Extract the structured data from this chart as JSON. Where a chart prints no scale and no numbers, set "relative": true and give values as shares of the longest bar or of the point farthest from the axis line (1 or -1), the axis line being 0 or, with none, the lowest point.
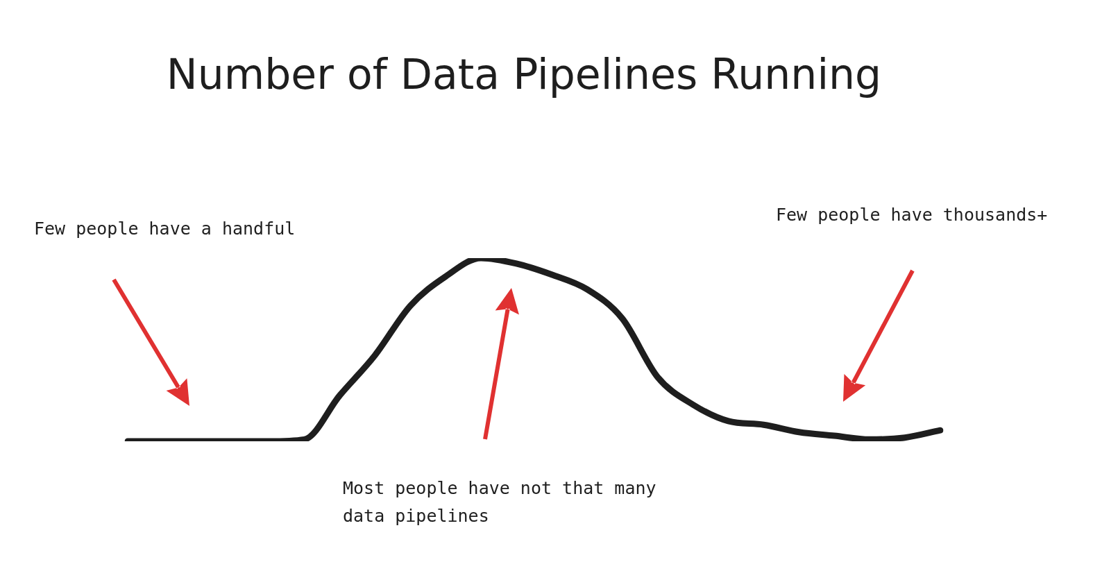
{
  "chart_data": {
    "type": "line",
    "title": "Number of Data Pipelines Running",
    "relative": true,
    "color": "#1e1e1e",
    "marker": "none",
    "line_style": "solid",
    "legend": false,
    "categories": [
      null,
      null,
      null,
      null,
      null,
      null,
      null,
      null,
      null,
      null,
      null,
      null,
      null,
      null,
      null,
      null,
      null,
      null,
      null,
      null,
      null,
      null,
      null,
      null
    ],
    "values": [
      0,
      0,
      0,
      0,
      0,
      0.01,
      0.25,
      0.47,
      0.74,
      0.9,
      1,
      0.97,
      0.91,
      0.83,
      0.67,
      0.35,
      0.2,
      0.11,
      0.09,
      0.05,
      0.03,
      0.01,
      0.02,
      0.06
    ],
    "annotations": [
      "Few people have a handful",
      "Few people have thousands+",
      "Most people have not that many data pipelines"
    ]
  }
}
